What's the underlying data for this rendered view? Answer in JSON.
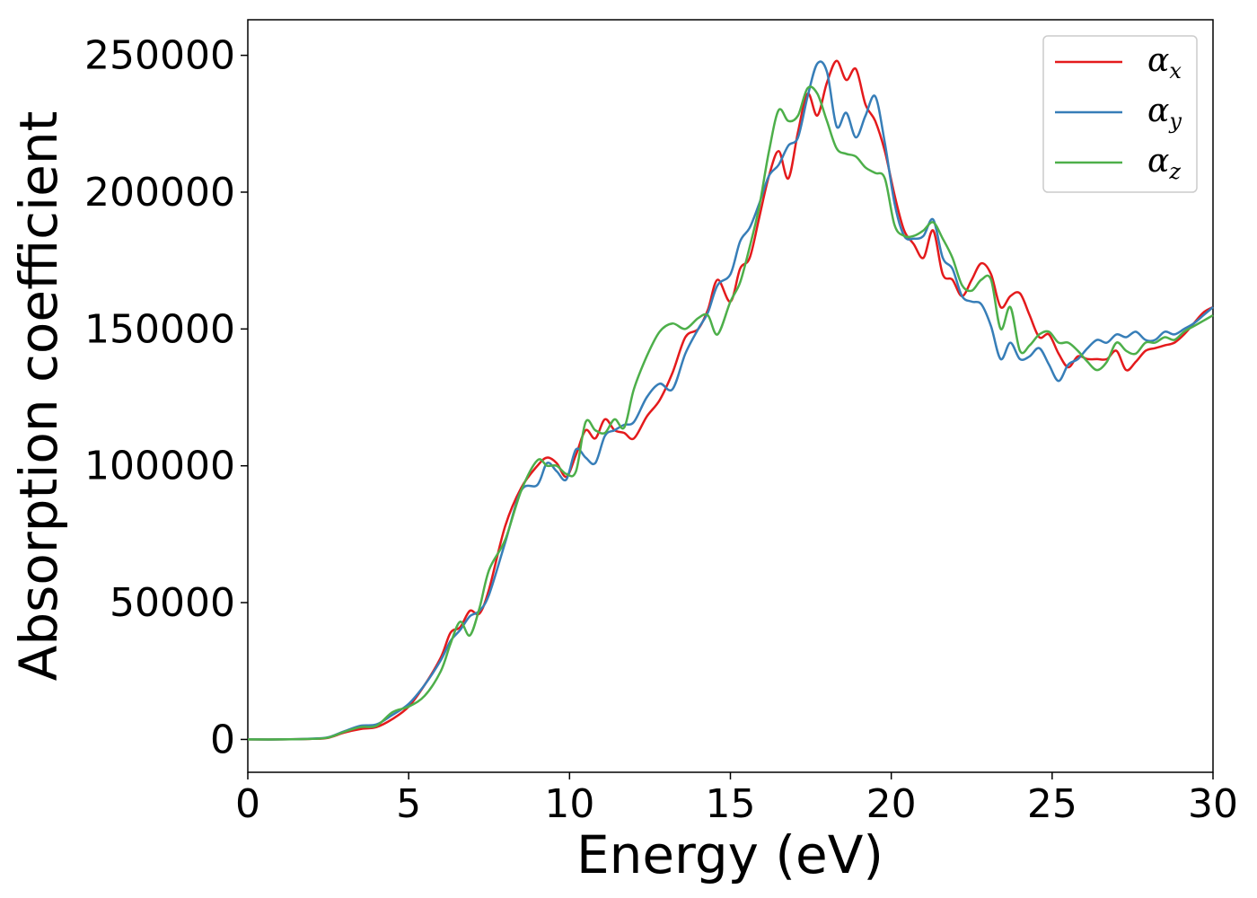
{
  "chart_data": {
    "type": "line",
    "xlabel": "Energy (eV)",
    "ylabel": "Absorption coefficient",
    "xlim": [
      0,
      30
    ],
    "ylim": [
      -12000,
      263000
    ],
    "xticks": [
      0,
      5,
      10,
      15,
      20,
      25,
      30
    ],
    "xtick_labels": [
      "0",
      "5",
      "10",
      "15",
      "20",
      "25",
      "30"
    ],
    "yticks": [
      0,
      50000,
      100000,
      150000,
      200000,
      250000
    ],
    "ytick_labels": [
      "0",
      "50000",
      "100000",
      "150000",
      "200000",
      "250000"
    ],
    "grid": false,
    "legend_position": "top-right",
    "series": [
      {
        "name": "α",
        "subscript": "x",
        "color": "#e41a1c",
        "x": [
          0,
          1,
          2,
          2.5,
          3,
          3.5,
          4,
          4.5,
          5,
          5.5,
          6,
          6.3,
          6.6,
          6.9,
          7.2,
          7.5,
          8,
          8.5,
          9,
          9.3,
          9.6,
          9.9,
          10.2,
          10.5,
          10.8,
          11.1,
          11.4,
          11.7,
          12,
          12.4,
          12.8,
          13.2,
          13.6,
          14,
          14.3,
          14.6,
          15,
          15.3,
          15.6,
          15.9,
          16.2,
          16.5,
          16.8,
          17.1,
          17.4,
          17.7,
          18,
          18.3,
          18.6,
          18.9,
          19.2,
          19.5,
          19.8,
          20.1,
          20.4,
          20.7,
          21,
          21.3,
          21.6,
          21.9,
          22.2,
          22.5,
          22.8,
          23.1,
          23.4,
          23.7,
          24,
          24.3,
          24.6,
          24.9,
          25.2,
          25.5,
          25.8,
          26.1,
          26.4,
          26.7,
          27,
          27.3,
          27.6,
          27.9,
          28.2,
          28.5,
          28.8,
          29.1,
          29.4,
          29.7,
          30
        ],
        "values": [
          0,
          0,
          200,
          600,
          2500,
          3800,
          4500,
          7500,
          12000,
          20000,
          30000,
          39000,
          41000,
          47000,
          46000,
          55000,
          78000,
          92000,
          100000,
          103000,
          101000,
          96000,
          104000,
          113000,
          110000,
          117000,
          113000,
          112000,
          110000,
          118000,
          124000,
          134000,
          147000,
          150000,
          157000,
          168000,
          160000,
          172000,
          176000,
          191000,
          206000,
          215000,
          205000,
          222000,
          236000,
          228000,
          240000,
          248000,
          241000,
          245000,
          232000,
          226000,
          215000,
          199000,
          186000,
          181000,
          176000,
          186000,
          170000,
          168000,
          162000,
          168000,
          174000,
          170000,
          158000,
          162000,
          163000,
          155000,
          147000,
          148000,
          141000,
          136000,
          140000,
          139000,
          139000,
          139000,
          142000,
          135000,
          138000,
          142000,
          143000,
          144000,
          145000,
          148000,
          152000,
          156000,
          158000
        ]
      },
      {
        "name": "α",
        "subscript": "y",
        "color": "#377eb8",
        "x": [
          0,
          1,
          2,
          2.5,
          3,
          3.5,
          4,
          4.5,
          5,
          5.5,
          6,
          6.3,
          6.6,
          6.9,
          7.2,
          7.5,
          8,
          8.5,
          9,
          9.3,
          9.6,
          9.9,
          10.2,
          10.5,
          10.8,
          11.1,
          11.4,
          11.7,
          12,
          12.4,
          12.8,
          13.2,
          13.6,
          14,
          14.3,
          14.6,
          15,
          15.3,
          15.6,
          15.9,
          16.2,
          16.5,
          16.8,
          17.1,
          17.4,
          17.7,
          18,
          18.3,
          18.6,
          18.9,
          19.2,
          19.5,
          19.8,
          20.1,
          20.4,
          20.7,
          21,
          21.3,
          21.6,
          21.9,
          22.2,
          22.5,
          22.8,
          23.1,
          23.4,
          23.7,
          24,
          24.3,
          24.6,
          24.9,
          25.2,
          25.5,
          25.8,
          26.1,
          26.4,
          26.7,
          27,
          27.3,
          27.6,
          27.9,
          28.2,
          28.5,
          28.8,
          29.1,
          29.4,
          29.7,
          30
        ],
        "values": [
          0,
          0,
          300,
          800,
          3000,
          5000,
          5500,
          9000,
          13000,
          20000,
          29000,
          36000,
          40000,
          45000,
          47000,
          53000,
          72000,
          91000,
          93000,
          101000,
          98000,
          95000,
          106000,
          103000,
          101000,
          111000,
          113000,
          115000,
          116000,
          125000,
          130000,
          128000,
          141000,
          150000,
          156000,
          166000,
          170000,
          182000,
          187000,
          196000,
          206000,
          210000,
          217000,
          220000,
          235000,
          247000,
          244000,
          224000,
          229000,
          220000,
          228000,
          235000,
          218000,
          196000,
          184000,
          183000,
          184000,
          190000,
          176000,
          172000,
          162000,
          160000,
          159000,
          151000,
          139000,
          145000,
          139000,
          140000,
          143000,
          137000,
          131000,
          137000,
          139000,
          143000,
          146000,
          145000,
          148000,
          147000,
          149000,
          146000,
          146000,
          149000,
          148000,
          150000,
          152000,
          155000,
          158000
        ]
      },
      {
        "name": "α",
        "subscript": "z",
        "color": "#4daf4a",
        "x": [
          0,
          1,
          2,
          2.5,
          3,
          3.5,
          4,
          4.5,
          5,
          5.5,
          6,
          6.3,
          6.6,
          6.9,
          7.2,
          7.5,
          8,
          8.5,
          9,
          9.3,
          9.6,
          9.9,
          10.2,
          10.5,
          10.8,
          11.1,
          11.4,
          11.7,
          12,
          12.4,
          12.8,
          13.2,
          13.6,
          14,
          14.3,
          14.6,
          15,
          15.3,
          15.6,
          15.9,
          16.2,
          16.5,
          16.8,
          17.1,
          17.4,
          17.7,
          18,
          18.3,
          18.6,
          18.9,
          19.2,
          19.5,
          19.8,
          20.1,
          20.4,
          20.7,
          21,
          21.3,
          21.6,
          21.9,
          22.2,
          22.5,
          22.8,
          23.1,
          23.4,
          23.7,
          24,
          24.3,
          24.6,
          24.9,
          25.2,
          25.5,
          25.8,
          26.1,
          26.4,
          26.7,
          27,
          27.3,
          27.6,
          27.9,
          28.2,
          28.5,
          28.8,
          29.1,
          29.4,
          29.7,
          30
        ],
        "values": [
          0,
          0,
          200,
          700,
          2800,
          4500,
          5000,
          10000,
          12000,
          16000,
          25000,
          35000,
          43000,
          38000,
          48000,
          62000,
          73000,
          91000,
          102000,
          100000,
          100000,
          97000,
          98000,
          116000,
          113000,
          112000,
          117000,
          114000,
          128000,
          140000,
          149000,
          152000,
          150000,
          154000,
          155000,
          148000,
          160000,
          167000,
          180000,
          195000,
          215000,
          230000,
          226000,
          228000,
          238000,
          236000,
          226000,
          216000,
          214000,
          213000,
          209000,
          207000,
          205000,
          188000,
          184000,
          184000,
          186000,
          189000,
          183000,
          176000,
          166000,
          164000,
          168000,
          168000,
          150000,
          158000,
          142000,
          144000,
          148000,
          149000,
          145000,
          145000,
          142000,
          138000,
          135000,
          138000,
          145000,
          142000,
          141000,
          145000,
          145000,
          147000,
          146000,
          149000,
          151000,
          153000,
          155000
        ]
      }
    ]
  }
}
